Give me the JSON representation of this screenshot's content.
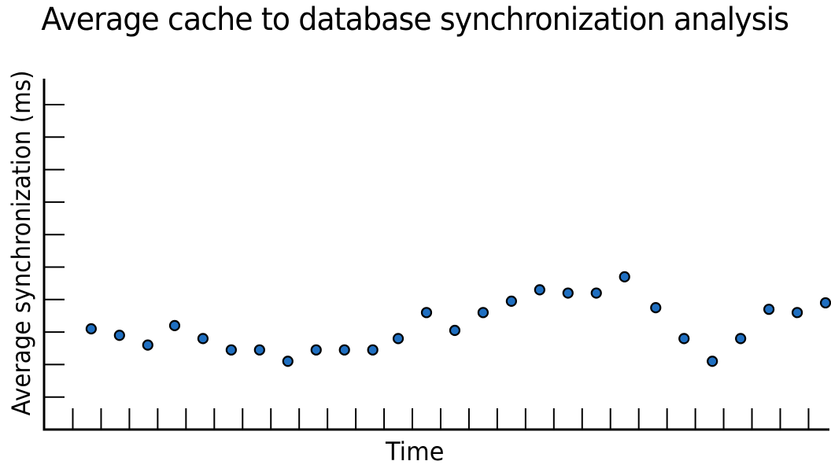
{
  "chart_data": {
    "type": "scatter",
    "title": "Average cache to database synchronization analysis",
    "xlabel": "Time",
    "ylabel": "Average synchronization (ms)",
    "x_tick_labels_shown": false,
    "y_tick_labels_shown": false,
    "grid": false,
    "legend": "none",
    "ylim": [
      0,
      10
    ],
    "y_ticks": [
      1,
      2,
      3,
      4,
      5,
      6,
      7,
      8,
      9,
      10
    ],
    "x": [
      0.65,
      1.65,
      2.65,
      3.6,
      4.6,
      5.6,
      6.6,
      7.6,
      8.6,
      9.6,
      10.6,
      11.5,
      12.5,
      13.5,
      14.5,
      15.5,
      16.5,
      17.5,
      18.5,
      19.5,
      20.6,
      21.6,
      22.6,
      23.6,
      24.6,
      25.6,
      26.6
    ],
    "values": [
      3.1,
      2.9,
      2.6,
      3.2,
      2.8,
      2.45,
      2.45,
      2.1,
      2.45,
      2.45,
      2.45,
      2.8,
      3.6,
      3.05,
      3.6,
      3.95,
      4.3,
      4.2,
      4.2,
      4.7,
      3.75,
      2.8,
      2.1,
      2.8,
      3.7,
      3.6,
      3.9
    ],
    "x_tick_count": 27,
    "marker_color": "#1f6fc1",
    "marker_edge_color": "#000000"
  }
}
